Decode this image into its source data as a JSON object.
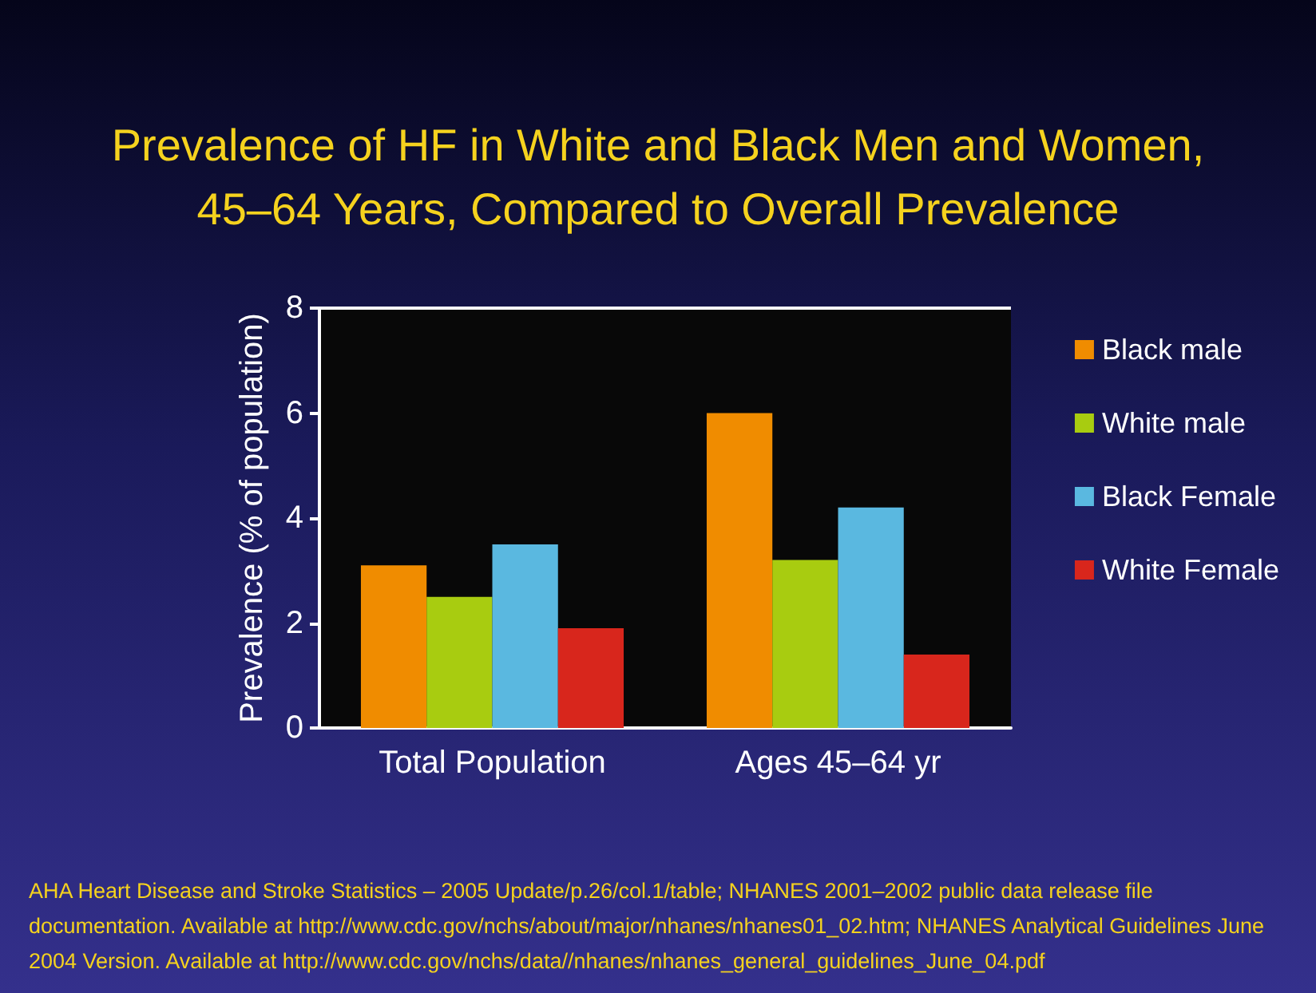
{
  "chart_data": {
    "type": "bar",
    "title": "Prevalence of HF in White and Black Men and Women,\n45–64 Years, Compared to Overall Prevalence",
    "ylabel": "Prevalence (% of population)",
    "categories": [
      "Total Population",
      "Ages 45–64 yr"
    ],
    "series": [
      {
        "name": "Black male",
        "color": "#f08c00",
        "values": [
          3.1,
          6.0
        ]
      },
      {
        "name": "White male",
        "color": "#a8cc10",
        "values": [
          2.5,
          3.2
        ]
      },
      {
        "name": "Black Female",
        "color": "#5ab8e0",
        "values": [
          3.5,
          4.2
        ]
      },
      {
        "name": "White Female",
        "color": "#d8261c",
        "values": [
          1.9,
          1.4
        ]
      }
    ],
    "ylim": [
      0,
      8
    ],
    "yticks": [
      0,
      2,
      4,
      6,
      8
    ],
    "grid": false,
    "legend": "right",
    "annotations": [
      "AHA Heart Disease and Stroke Statistics – 2005 Update/p.26/col.1/table; NHANES 2001–2002 public data release file documentation. Available at http://www.cdc.gov/nchs/about/major/nhanes/nhanes01_02.htm; NHANES Analytical Guidelines June 2004 Version. Available at http://www.cdc.gov/nchs/data//nhanes/nhanes_general_guidelines_June_04.pdf"
    ]
  }
}
